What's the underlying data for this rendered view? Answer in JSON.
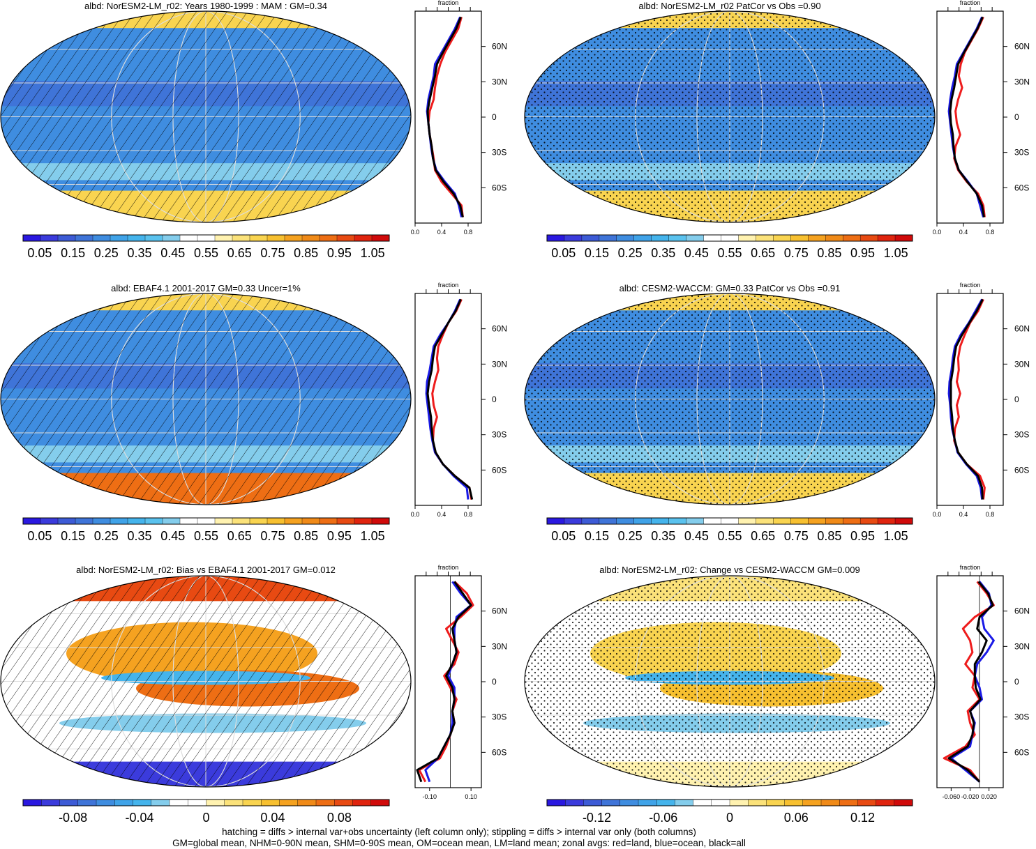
{
  "footer": {
    "line1": "hatching = diffs > internal var+obs uncertainty (left column only); stippling = diffs > internal var only (both columns)",
    "line2": "GM=global mean, NHM=0-90N mean, SHM=0-90S mean, OM=ocean mean, LM=land mean; zonal avgs: red=land, blue=ocean, black=all"
  },
  "zonal_axis_label": "fraction",
  "lat_ticks": [
    "60N",
    "30N",
    "0",
    "30S",
    "60S"
  ],
  "chart_data": [
    {
      "type": "heatmap",
      "title": "albd: NorESM2-LM_r02: Years 1980-1999 : MAM : GM=0.34",
      "overlay": "hatching",
      "colorbar_ticks": [
        "0.05",
        "0.15",
        "0.25",
        "0.35",
        "0.45",
        "0.55",
        "0.65",
        "0.75",
        "0.85",
        "0.95",
        "1.05"
      ],
      "colorbar_range": [
        0,
        1.1
      ],
      "palette": "seq",
      "zonal": {
        "xticks": [
          "0.0",
          "0.4",
          "0.8"
        ],
        "xlim": [
          0,
          1.0
        ],
        "lat": [
          85,
          75,
          65,
          55,
          45,
          35,
          25,
          15,
          5,
          -5,
          -15,
          -25,
          -35,
          -45,
          -55,
          -65,
          -75,
          -85
        ],
        "land": [
          0.7,
          0.65,
          0.55,
          0.45,
          0.38,
          0.33,
          0.3,
          0.28,
          0.22,
          0.2,
          0.22,
          0.25,
          0.28,
          0.3,
          0.4,
          0.55,
          0.7,
          0.72
        ],
        "ocean": [
          0.68,
          0.6,
          0.5,
          0.4,
          0.3,
          0.28,
          0.24,
          0.2,
          0.18,
          0.2,
          0.22,
          0.24,
          0.27,
          0.32,
          0.45,
          0.6,
          0.66,
          0.7
        ],
        "all": [
          0.69,
          0.62,
          0.52,
          0.42,
          0.33,
          0.3,
          0.26,
          0.22,
          0.19,
          0.2,
          0.22,
          0.25,
          0.27,
          0.31,
          0.43,
          0.58,
          0.68,
          0.72
        ]
      }
    },
    {
      "type": "heatmap",
      "title": "albd: NorESM2-LM_r02 PatCor vs Obs =0.90",
      "overlay": "stipple",
      "colorbar_ticks": [
        "0.05",
        "0.15",
        "0.25",
        "0.35",
        "0.45",
        "0.55",
        "0.65",
        "0.75",
        "0.85",
        "0.95",
        "1.05"
      ],
      "colorbar_range": [
        0,
        1.1
      ],
      "palette": "seq",
      "zonal": {
        "xticks": [
          "0.0",
          "0.4",
          "0.8"
        ],
        "xlim": [
          0,
          1.0
        ],
        "lat": [
          85,
          75,
          65,
          55,
          45,
          35,
          25,
          15,
          5,
          -5,
          -15,
          -25,
          -35,
          -45,
          -55,
          -65,
          -75,
          -85
        ],
        "land": [
          0.7,
          0.62,
          0.52,
          0.42,
          0.36,
          0.33,
          0.38,
          0.32,
          0.28,
          0.3,
          0.35,
          0.28,
          0.26,
          0.32,
          0.45,
          0.62,
          0.7,
          0.72
        ],
        "ocean": [
          0.68,
          0.6,
          0.5,
          0.4,
          0.3,
          0.27,
          0.23,
          0.2,
          0.18,
          0.2,
          0.22,
          0.24,
          0.27,
          0.33,
          0.47,
          0.6,
          0.65,
          0.7
        ],
        "all": [
          0.69,
          0.61,
          0.51,
          0.41,
          0.32,
          0.29,
          0.26,
          0.22,
          0.2,
          0.21,
          0.24,
          0.25,
          0.27,
          0.33,
          0.46,
          0.6,
          0.68,
          0.71
        ]
      }
    },
    {
      "type": "heatmap",
      "title": "albd: EBAF4.1 2001-2017 GM=0.33 Uncer=1%",
      "overlay": "hatching",
      "colorbar_ticks": [
        "0.05",
        "0.15",
        "0.25",
        "0.35",
        "0.45",
        "0.55",
        "0.65",
        "0.75",
        "0.85",
        "0.95",
        "1.05"
      ],
      "colorbar_range": [
        0,
        1.1
      ],
      "palette": "seq",
      "zonal": {
        "xticks": [
          "0.0",
          "0.4",
          "0.8"
        ],
        "xlim": [
          0,
          1.0
        ],
        "lat": [
          85,
          75,
          65,
          55,
          45,
          35,
          25,
          15,
          5,
          -5,
          -15,
          -25,
          -35,
          -45,
          -55,
          -65,
          -75,
          -85
        ],
        "land": [
          0.7,
          0.62,
          0.5,
          0.42,
          0.35,
          0.33,
          0.35,
          0.3,
          0.26,
          0.28,
          0.33,
          0.28,
          0.27,
          0.3,
          0.42,
          0.6,
          0.82,
          0.85
        ],
        "ocean": [
          0.68,
          0.6,
          0.5,
          0.38,
          0.28,
          0.25,
          0.22,
          0.18,
          0.17,
          0.19,
          0.21,
          0.23,
          0.26,
          0.3,
          0.42,
          0.58,
          0.78,
          0.8
        ],
        "all": [
          0.69,
          0.61,
          0.5,
          0.4,
          0.3,
          0.27,
          0.25,
          0.21,
          0.19,
          0.21,
          0.24,
          0.25,
          0.27,
          0.31,
          0.42,
          0.6,
          0.82,
          0.86
        ]
      }
    },
    {
      "type": "heatmap",
      "title": "albd: CESM2-WACCM: GM=0.33 PatCor vs Obs =0.91",
      "overlay": "stipple",
      "colorbar_ticks": [
        "0.05",
        "0.15",
        "0.25",
        "0.35",
        "0.45",
        "0.55",
        "0.65",
        "0.75",
        "0.85",
        "0.95",
        "1.05"
      ],
      "colorbar_range": [
        0,
        1.1
      ],
      "palette": "seq",
      "zonal": {
        "xticks": [
          "0.0",
          "0.4",
          "0.8"
        ],
        "xlim": [
          0,
          1.0
        ],
        "lat": [
          85,
          75,
          65,
          55,
          45,
          35,
          25,
          15,
          5,
          -5,
          -15,
          -25,
          -35,
          -45,
          -55,
          -65,
          -75,
          -85
        ],
        "land": [
          0.7,
          0.62,
          0.5,
          0.42,
          0.35,
          0.32,
          0.33,
          0.3,
          0.35,
          0.3,
          0.33,
          0.27,
          0.26,
          0.32,
          0.45,
          0.65,
          0.72,
          0.7
        ],
        "ocean": [
          0.68,
          0.58,
          0.48,
          0.36,
          0.27,
          0.24,
          0.22,
          0.19,
          0.18,
          0.2,
          0.21,
          0.23,
          0.27,
          0.31,
          0.44,
          0.6,
          0.66,
          0.68
        ],
        "all": [
          0.69,
          0.6,
          0.49,
          0.38,
          0.29,
          0.26,
          0.24,
          0.21,
          0.21,
          0.21,
          0.23,
          0.24,
          0.27,
          0.32,
          0.45,
          0.62,
          0.68,
          0.69
        ]
      }
    },
    {
      "type": "heatmap",
      "title": "albd: NorESM2-LM_r02: Bias vs EBAF4.1 2001-2017 GM=0.012",
      "overlay": "hatching",
      "colorbar_ticks": [
        "-0.08",
        "-0.04",
        "0",
        "0.04",
        "0.08"
      ],
      "colorbar_range": [
        -0.11,
        0.11
      ],
      "palette": "div",
      "zonal": {
        "xticks": [
          "-0.10",
          "0.10"
        ],
        "xlim": [
          -0.17,
          0.15
        ],
        "lat": [
          85,
          75,
          65,
          55,
          45,
          35,
          25,
          15,
          5,
          -5,
          -15,
          -25,
          -35,
          -45,
          -55,
          -65,
          -75,
          -85
        ],
        "land": [
          0.02,
          0.08,
          0.11,
          0.05,
          -0.02,
          0.01,
          0.04,
          0.02,
          -0.03,
          0.0,
          0.03,
          0.01,
          0.02,
          0.0,
          -0.02,
          -0.05,
          -0.15,
          -0.12
        ],
        "ocean": [
          0.01,
          0.05,
          0.1,
          0.03,
          0.02,
          0.02,
          0.03,
          0.01,
          -0.01,
          0.02,
          0.02,
          0.01,
          0.01,
          0.0,
          -0.03,
          -0.06,
          -0.12,
          -0.1
        ],
        "all": [
          0.02,
          0.06,
          0.1,
          0.04,
          0.01,
          0.02,
          0.03,
          0.01,
          -0.02,
          0.01,
          0.02,
          0.01,
          0.02,
          0.0,
          -0.03,
          -0.06,
          -0.16,
          -0.14
        ]
      }
    },
    {
      "type": "heatmap",
      "title": "albd: NorESM2-LM_r02: Change vs CESM2-WACCM GM=0.009",
      "overlay": "stipple",
      "colorbar_ticks": [
        "-0.12",
        "-0.06",
        "0",
        "0.06",
        "0.12"
      ],
      "colorbar_range": [
        -0.165,
        0.165
      ],
      "palette": "div",
      "zonal": {
        "xticks": [
          "-0.060",
          "-0.020",
          "0.020"
        ],
        "xlim": [
          -0.09,
          0.05
        ],
        "lat": [
          85,
          75,
          65,
          55,
          45,
          35,
          25,
          15,
          5,
          -5,
          -15,
          -25,
          -35,
          -45,
          -55,
          -65,
          -75,
          -85
        ],
        "land": [
          -0.005,
          0.015,
          0.03,
          -0.01,
          -0.035,
          -0.02,
          -0.015,
          -0.03,
          -0.01,
          -0.015,
          0.0,
          -0.025,
          -0.02,
          -0.01,
          -0.03,
          -0.075,
          -0.02,
          0.0
        ],
        "ocean": [
          0.0,
          0.02,
          0.025,
          0.005,
          0.01,
          0.03,
          0.015,
          -0.005,
          -0.01,
          0.0,
          0.005,
          -0.02,
          -0.01,
          -0.015,
          -0.02,
          -0.06,
          -0.03,
          0.0
        ],
        "all": [
          -0.002,
          0.018,
          0.028,
          0.0,
          -0.005,
          0.015,
          0.005,
          -0.01,
          -0.01,
          -0.008,
          0.002,
          -0.02,
          -0.012,
          -0.015,
          -0.025,
          -0.065,
          -0.025,
          0.0
        ]
      }
    }
  ]
}
